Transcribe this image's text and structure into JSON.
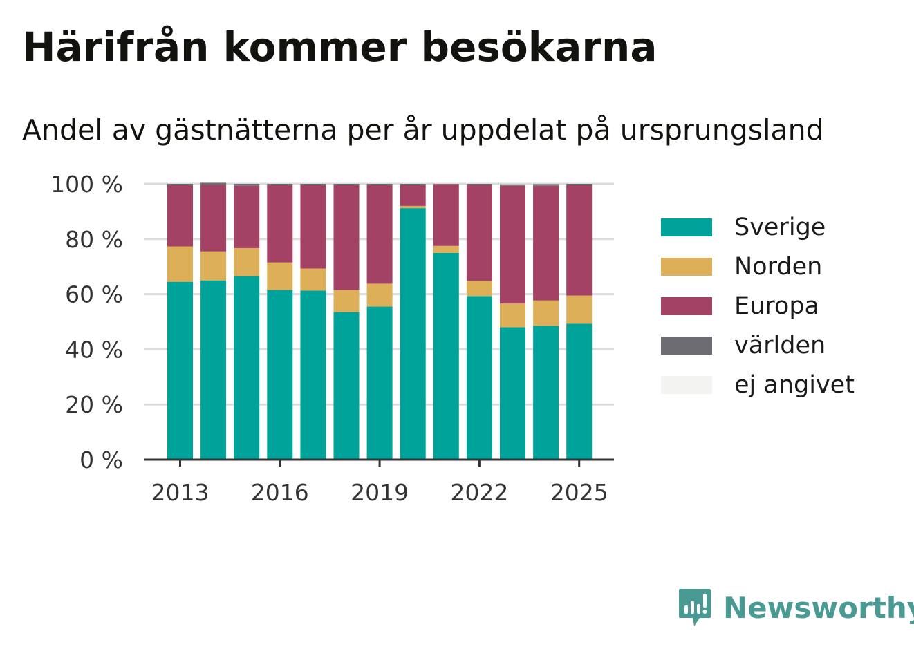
{
  "header": {
    "title": "Härifrån kommer besökarna",
    "subtitle": "Andel av gästnätterna per år uppdelat på ursprungsland"
  },
  "brand": {
    "name": "Newsworthy",
    "icon": "newsworthy-logo-icon",
    "color": "#4a9a94"
  },
  "chart_data": {
    "type": "bar",
    "stacked": true,
    "categories": [
      "2013",
      "2014",
      "2015",
      "2016",
      "2017",
      "2018",
      "2019",
      "2020",
      "2021",
      "2022",
      "2023",
      "2024",
      "2025"
    ],
    "x_tick_labels": [
      "2013",
      "2016",
      "2019",
      "2022",
      "2025"
    ],
    "y_tick_labels": [
      "0 %",
      "20 %",
      "40 %",
      "60 %",
      "80 %",
      "100 %"
    ],
    "y_ticks": [
      0,
      20,
      40,
      60,
      80,
      100
    ],
    "ylim": [
      0,
      100
    ],
    "grid": true,
    "legend_position": "right",
    "series": [
      {
        "name": "Sverige",
        "color": "#00a39a",
        "values": [
          64.5,
          65,
          66.5,
          61.5,
          61.3,
          53.5,
          55.5,
          91.2,
          75,
          59.3,
          48,
          48.5,
          49.3
        ]
      },
      {
        "name": "Norden",
        "color": "#dcaf58",
        "values": [
          12.8,
          10.5,
          10.2,
          10,
          8,
          8,
          8.3,
          0.8,
          2.5,
          5.5,
          8.6,
          9.2,
          10.2
        ]
      },
      {
        "name": "Europa",
        "color": "#a34265",
        "values": [
          22.2,
          24.1,
          22.6,
          28,
          30.2,
          38,
          35.7,
          7.5,
          22.3,
          34.8,
          42.7,
          41.6,
          40
        ]
      },
      {
        "name": "världen",
        "color": "#6c6c72",
        "values": [
          0.5,
          0.8,
          0.7,
          0.5,
          0.5,
          0.5,
          0.5,
          0.5,
          0.2,
          0.4,
          0.5,
          0.6,
          0.5
        ]
      },
      {
        "name": "ej angivet",
        "color": "#f3f3f2",
        "values": [
          0,
          0,
          0,
          0,
          0,
          0,
          0,
          0,
          0,
          0,
          0,
          0,
          0
        ]
      }
    ]
  }
}
